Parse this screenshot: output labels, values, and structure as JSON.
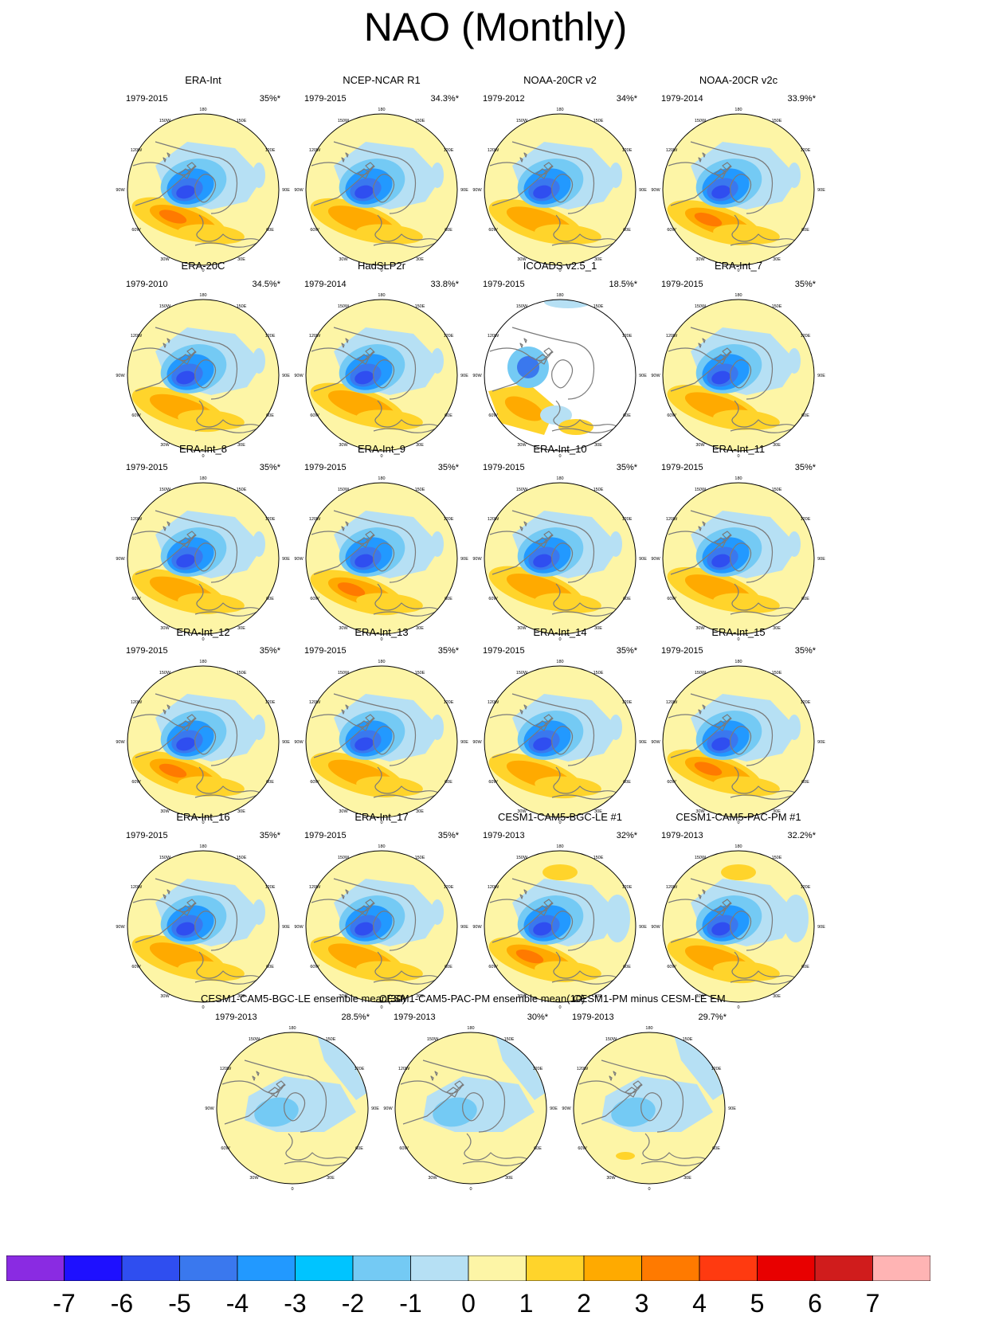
{
  "title": "NAO (Monthly)",
  "colors": {
    "ocean_bg": "#fdf5a6",
    "coast": "#7a7a7a",
    "missing": "#ffffff"
  },
  "lon_labels": [
    "180",
    "150W",
    "150E",
    "120W",
    "120E",
    "90W",
    "90E",
    "60W",
    "60E",
    "30W",
    "30E",
    "0"
  ],
  "panels": [
    {
      "name": "ERA-Int",
      "years": "1979-2015",
      "pct": "35%*",
      "style": "reanalysis"
    },
    {
      "name": "NCEP-NCAR R1",
      "years": "1979-2015",
      "pct": "34.3%*",
      "style": "reanalysis"
    },
    {
      "name": "NOAA-20CR v2",
      "years": "1979-2012",
      "pct": "34%*",
      "style": "reanalysis"
    },
    {
      "name": "NOAA-20CR v2c",
      "years": "1979-2014",
      "pct": "33.9%*",
      "style": "reanalysis"
    },
    {
      "name": "ERA-20C",
      "years": "1979-2010",
      "pct": "34.5%*",
      "style": "reanalysis"
    },
    {
      "name": "HadSLP2r",
      "years": "1979-2014",
      "pct": "33.8%*",
      "style": "reanalysis"
    },
    {
      "name": "ICOADS v2.5_1",
      "years": "1979-2015",
      "pct": "18.5%*",
      "style": "icoads"
    },
    {
      "name": "ERA-Int_7",
      "years": "1979-2015",
      "pct": "35%*",
      "style": "reanalysis"
    },
    {
      "name": "ERA-Int_8",
      "years": "1979-2015",
      "pct": "35%*",
      "style": "reanalysis"
    },
    {
      "name": "ERA-Int_9",
      "years": "1979-2015",
      "pct": "35%*",
      "style": "reanalysis"
    },
    {
      "name": "ERA-Int_10",
      "years": "1979-2015",
      "pct": "35%*",
      "style": "reanalysis"
    },
    {
      "name": "ERA-Int_11",
      "years": "1979-2015",
      "pct": "35%*",
      "style": "reanalysis"
    },
    {
      "name": "ERA-Int_12",
      "years": "1979-2015",
      "pct": "35%*",
      "style": "reanalysis"
    },
    {
      "name": "ERA-Int_13",
      "years": "1979-2015",
      "pct": "35%*",
      "style": "reanalysis"
    },
    {
      "name": "ERA-Int_14",
      "years": "1979-2015",
      "pct": "35%*",
      "style": "reanalysis"
    },
    {
      "name": "ERA-Int_15",
      "years": "1979-2015",
      "pct": "35%*",
      "style": "reanalysis"
    },
    {
      "name": "ERA-Int_16",
      "years": "1979-2015",
      "pct": "35%*",
      "style": "reanalysis"
    },
    {
      "name": "ERA-Int_17",
      "years": "1979-2015",
      "pct": "35%*",
      "style": "reanalysis"
    },
    {
      "name": "CESM1-CAM5-BGC-LE #1",
      "years": "1979-2013",
      "pct": "32%*",
      "style": "model"
    },
    {
      "name": "CESM1-CAM5-PAC-PM #1",
      "years": "1979-2013",
      "pct": "32.2%*",
      "style": "model"
    },
    {
      "name": "CESM1-CAM5-BGC-LE ensemble mean(30)",
      "years": "1979-2013",
      "pct": "28.5%*",
      "style": "ensemble"
    },
    {
      "name": "CESM1-CAM5-PAC-PM ensemble mean(10)",
      "years": "1979-2013",
      "pct": "30%*",
      "style": "ensemble"
    },
    {
      "name": "CESM1-PM minus CESM-LE EM",
      "years": "1979-2013",
      "pct": "29.7%*",
      "style": "ensemble"
    }
  ],
  "colorbar": {
    "colors": [
      "#8a2be2",
      "#1e10ff",
      "#2f4ef0",
      "#3a78ee",
      "#2299ff",
      "#00c4ff",
      "#74caf4",
      "#b6e0f4",
      "#fdf5a6",
      "#ffd42b",
      "#ffaa00",
      "#ff7a00",
      "#ff3a10",
      "#e80000",
      "#d01c1c",
      "#ffb4b4"
    ],
    "labels": [
      "-7",
      "-6",
      "-5",
      "-4",
      "-3",
      "-2",
      "-1",
      "0",
      "1",
      "2",
      "3",
      "4",
      "5",
      "6",
      "7"
    ]
  }
}
